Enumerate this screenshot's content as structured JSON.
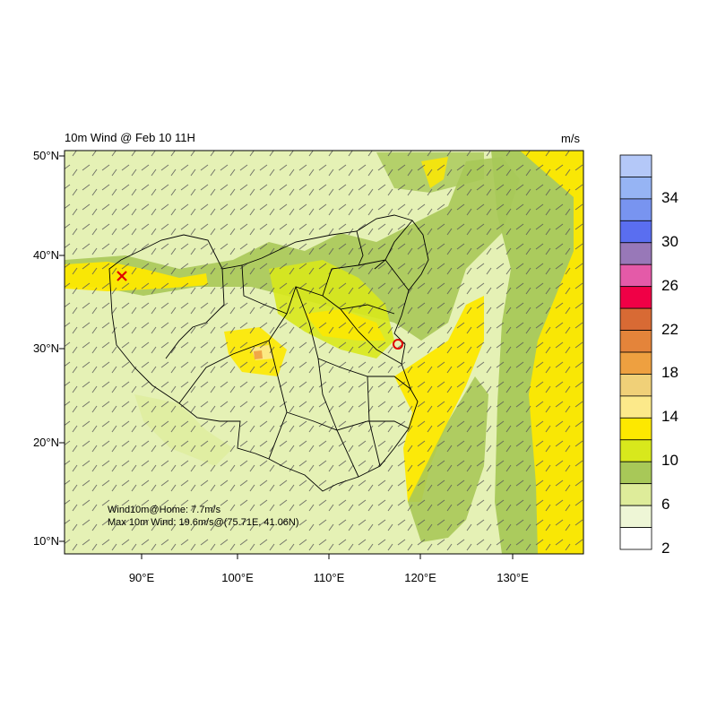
{
  "title": "10m Wind @ Feb 10 11H",
  "units": "m/s",
  "lat_labels": [
    "50°N",
    "40°N",
    "30°N",
    "20°N",
    "10°N"
  ],
  "lon_labels": [
    "90°E",
    "100°E",
    "110°E",
    "120°E",
    "130°E"
  ],
  "info": {
    "home": "Wind10m@Home: 7.7m/s",
    "max": "Max 10m Wind: 19.6m/s@(75.71E, 41.06N)"
  },
  "colorbar": {
    "labels": [
      "34",
      "30",
      "26",
      "22",
      "18",
      "14",
      "10",
      "6",
      "2"
    ],
    "colors": [
      "#b4c8f8",
      "#96b4f4",
      "#7894f0",
      "#5a6ef0",
      "#9878b8",
      "#e45aa8",
      "#f00046",
      "#d86a34",
      "#e4843a",
      "#eea040",
      "#f0d078",
      "#fce98a",
      "#fde800",
      "#d8e81c",
      "#a8c858",
      "#deec9a",
      "#eef6d6",
      "#ffffff"
    ]
  },
  "map_colors": {
    "calm": "#eef6d6",
    "light": "#deec9a",
    "moderate": "#a8c858",
    "fresh": "#d8e81c",
    "strong": "#fde800",
    "gale": "#fce98a",
    "stronggale": "#eea040"
  },
  "markers": {
    "max_wind": "red-x-marker",
    "home": "red-circle-marker"
  }
}
